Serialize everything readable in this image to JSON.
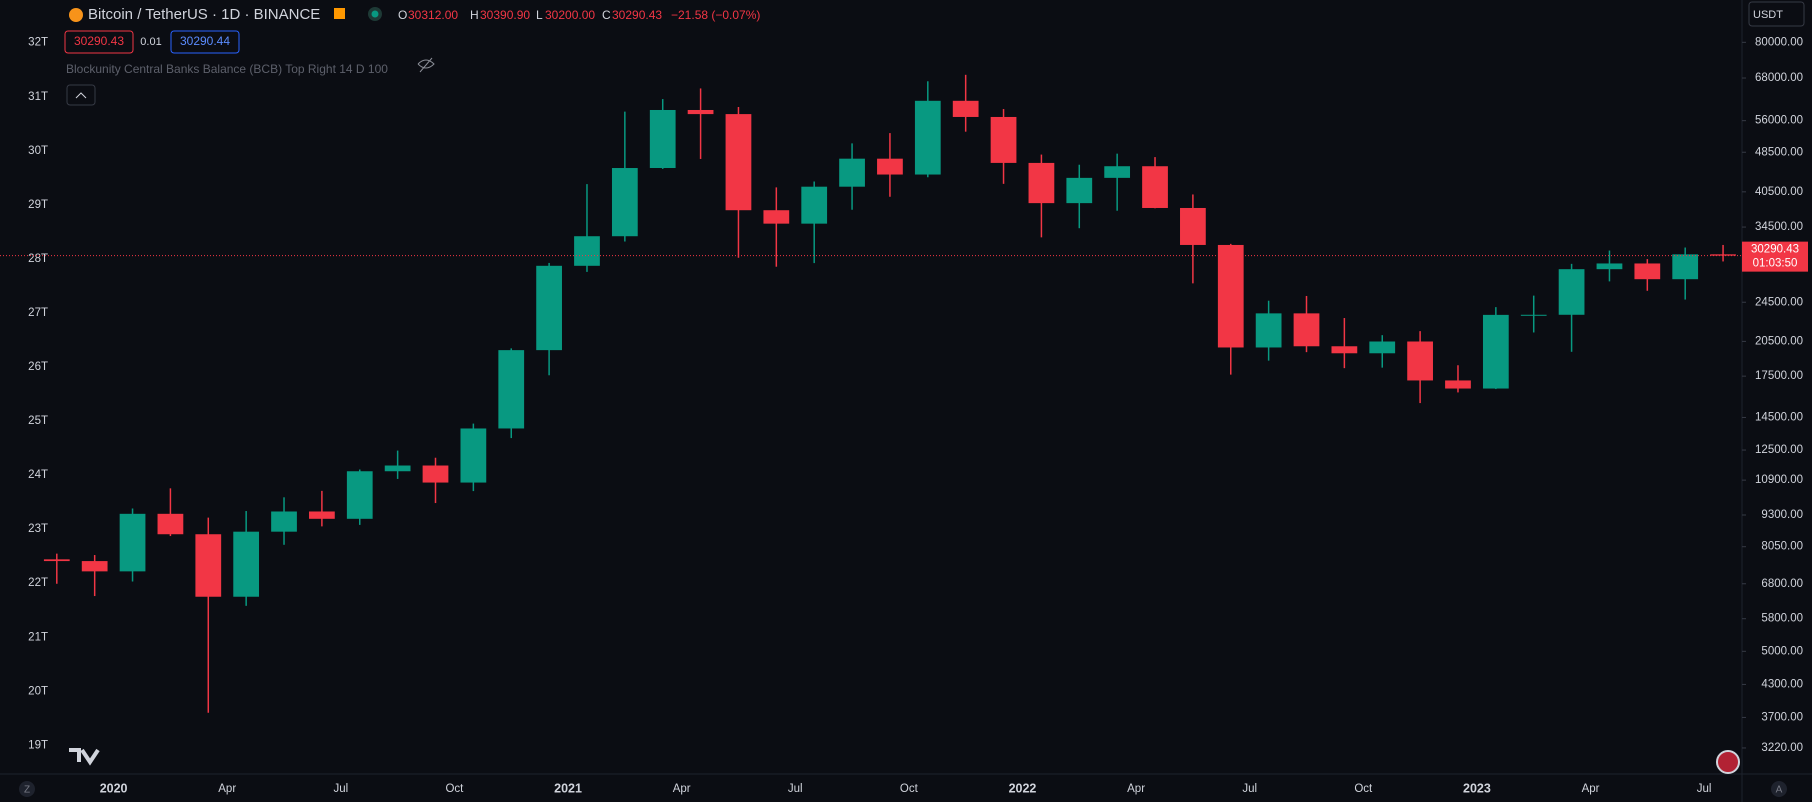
{
  "header": {
    "symbol": "Bitcoin / TetherUS · 1D · BINANCE",
    "open_label": "O",
    "open": "30312.00",
    "high_label": "H",
    "high": "30390.90",
    "low_label": "L",
    "low": "30200.00",
    "close_label": "C",
    "close": "30290.43",
    "change": "−21.58 (−0.07%)",
    "badges": [
      "30290.43",
      "0.01",
      "30290.44"
    ],
    "indicator": "Blockunity Central Banks Balance (BCB) Top Right 14 D 100",
    "currency": "USDT",
    "bottom_left": "Z",
    "bottom_right": "A"
  },
  "chart_data": {
    "type": "candlestick",
    "x": [
      "2019-11",
      "2019-12",
      "2020-01",
      "2020-02",
      "2020-03",
      "2020-04",
      "2020-05",
      "2020-06",
      "2020-07",
      "2020-08",
      "2020-09",
      "2020-10",
      "2020-11",
      "2020-12",
      "2021-01",
      "2021-02",
      "2021-03",
      "2021-04",
      "2021-05",
      "2021-06",
      "2021-07",
      "2021-08",
      "2021-09",
      "2021-10",
      "2021-11",
      "2021-12",
      "2022-01",
      "2022-02",
      "2022-03",
      "2022-04",
      "2022-05",
      "2022-06",
      "2022-07",
      "2022-08",
      "2022-09",
      "2022-10",
      "2022-11",
      "2022-12",
      "2023-01",
      "2023-02",
      "2023-03",
      "2023-04",
      "2023-05",
      "2023-06",
      "2023-07"
    ],
    "open": [
      7600,
      7540,
      7195,
      9350,
      8520,
      6410,
      8620,
      9450,
      9140,
      11350,
      11650,
      10780,
      13790,
      19700,
      28920,
      33090,
      45140,
      58790,
      57700,
      37250,
      35040,
      41460,
      47100,
      43820,
      61300,
      56950,
      46200,
      38470,
      43160,
      45510,
      37630,
      31800,
      19940,
      23290,
      20050,
      19420,
      20490,
      17160,
      16540,
      23130,
      23140,
      28480,
      29230,
      27210,
      30470
    ],
    "high": [
      7800,
      7750,
      9580,
      10500,
      9190,
      9470,
      10080,
      10380,
      11440,
      12470,
      12070,
      14100,
      19860,
      29300,
      41950,
      58350,
      61780,
      64850,
      59600,
      41330,
      42450,
      50500,
      52920,
      67000,
      69000,
      59040,
      47990,
      45820,
      48190,
      47440,
      40020,
      31950,
      24670,
      25210,
      22800,
      21090,
      21480,
      18390,
      23960,
      25250,
      29180,
      31000,
      29820,
      31430,
      31800
    ],
    "low": [
      6800,
      6430,
      6870,
      8450,
      3780,
      6150,
      8120,
      8830,
      8890,
      10960,
      9820,
      10370,
      13200,
      17570,
      28130,
      32300,
      44960,
      47040,
      30000,
      28800,
      29280,
      37330,
      39600,
      43280,
      53260,
      42000,
      32920,
      34320,
      37160,
      37580,
      26700,
      17620,
      18780,
      19520,
      18150,
      18190,
      15480,
      16250,
      16500,
      21350,
      19550,
      26940,
      25810,
      24800,
      29500
    ],
    "close": [
      7540,
      7195,
      9350,
      8520,
      6410,
      8620,
      9450,
      9140,
      11350,
      11650,
      10780,
      13790,
      19700,
      28920,
      33090,
      45140,
      58790,
      57700,
      37250,
      35040,
      41460,
      47100,
      43820,
      61300,
      56950,
      46200,
      38470,
      43160,
      45510,
      37630,
      31800,
      19940,
      23290,
      20050,
      19420,
      20490,
      17160,
      16540,
      23130,
      23140,
      28480,
      29230,
      27210,
      30470,
      30290
    ],
    "up_color": "#089981",
    "down_color": "#f23645",
    "log_scale": true,
    "grid": false,
    "ylim": [
      2860,
      97000
    ],
    "yticks": [
      {
        "value": 80000,
        "label": "80000.00"
      },
      {
        "value": 68000,
        "label": "68000.00"
      },
      {
        "value": 56000,
        "label": "56000.00"
      },
      {
        "value": 48500,
        "label": "48500.00"
      },
      {
        "value": 40500,
        "label": "40500.00"
      },
      {
        "value": 34500,
        "label": "34500.00"
      },
      {
        "value": 24500,
        "label": "24500.00"
      },
      {
        "value": 20500,
        "label": "20500.00"
      },
      {
        "value": 17500,
        "label": "17500.00"
      },
      {
        "value": 14500,
        "label": "14500.00"
      },
      {
        "value": 12500,
        "label": "12500.00"
      },
      {
        "value": 10900,
        "label": "10900.00"
      },
      {
        "value": 9300,
        "label": "9300.00"
      },
      {
        "value": 8050,
        "label": "8050.00"
      },
      {
        "value": 6800,
        "label": "6800.00"
      },
      {
        "value": 5800,
        "label": "5800.00"
      },
      {
        "value": 5000,
        "label": "5000.00"
      },
      {
        "value": 4300,
        "label": "4300.00"
      },
      {
        "value": 3700,
        "label": "3700.00"
      },
      {
        "value": 3220,
        "label": "3220.00"
      }
    ],
    "y2lim": [
      18.47,
      32.79
    ],
    "y2ticks": [
      {
        "value": 32,
        "label": "32T"
      },
      {
        "value": 31,
        "label": "31T"
      },
      {
        "value": 30,
        "label": "30T"
      },
      {
        "value": 29,
        "label": "29T"
      },
      {
        "value": 28,
        "label": "28T"
      },
      {
        "value": 27,
        "label": "27T"
      },
      {
        "value": 26,
        "label": "26T"
      },
      {
        "value": 25,
        "label": "25T"
      },
      {
        "value": 24,
        "label": "24T"
      },
      {
        "value": 23,
        "label": "23T"
      },
      {
        "value": 22,
        "label": "22T"
      },
      {
        "value": 21,
        "label": "21T"
      },
      {
        "value": 20,
        "label": "20T"
      },
      {
        "value": 19,
        "label": "19T"
      }
    ],
    "xlim": [
      "2019-10",
      "2023-08"
    ],
    "xticks": [
      {
        "value": "2020-01",
        "label": "2020"
      },
      {
        "value": "2020-04",
        "label": "Apr"
      },
      {
        "value": "2020-07",
        "label": "Jul"
      },
      {
        "value": "2020-10",
        "label": "Oct"
      },
      {
        "value": "2021-01",
        "label": "2021"
      },
      {
        "value": "2021-04",
        "label": "Apr"
      },
      {
        "value": "2021-07",
        "label": "Jul"
      },
      {
        "value": "2021-10",
        "label": "Oct"
      },
      {
        "value": "2022-01",
        "label": "2022"
      },
      {
        "value": "2022-04",
        "label": "Apr"
      },
      {
        "value": "2022-07",
        "label": "Jul"
      },
      {
        "value": "2022-10",
        "label": "Oct"
      },
      {
        "value": "2023-01",
        "label": "2023"
      },
      {
        "value": "2023-04",
        "label": "Apr"
      },
      {
        "value": "2023-07",
        "label": "Jul"
      }
    ],
    "last_price": 30290.43,
    "price_color": "#f23645",
    "countdown": "01:03:50"
  }
}
